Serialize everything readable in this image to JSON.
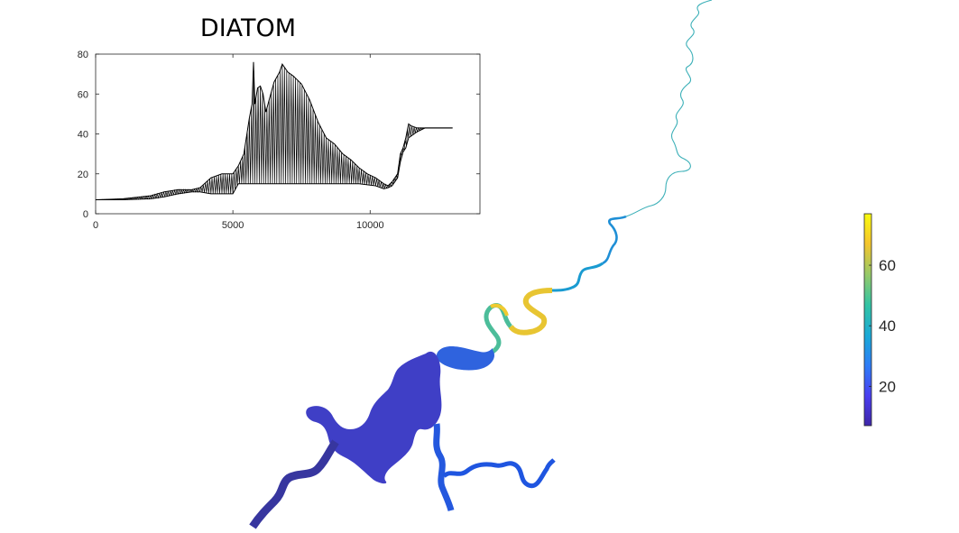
{
  "chart_data": [
    {
      "type": "line",
      "title": "DIATOM",
      "xlabel": "",
      "ylabel": "",
      "xlim": [
        0,
        14000
      ],
      "ylim": [
        0,
        80
      ],
      "xticks": [
        0,
        5000,
        10000
      ],
      "yticks": [
        0,
        20,
        40,
        60,
        80
      ],
      "xtick_labels": [
        "0",
        "5000",
        "10000"
      ],
      "ytick_labels": [
        "0",
        "20",
        "40",
        "60",
        "80"
      ],
      "grid": false,
      "line_color": "#000000",
      "envelope": {
        "x": [
          0,
          1000,
          2000,
          2500,
          3000,
          3500,
          3800,
          4200,
          4600,
          5000,
          5200,
          5400,
          5600,
          5700,
          5750,
          5800,
          5900,
          6000,
          6100,
          6200,
          6300,
          6500,
          6700,
          6800,
          7000,
          7200,
          7500,
          7800,
          8100,
          8400,
          8700,
          9000,
          9300,
          9600,
          9900,
          10200,
          10500,
          10650,
          10800,
          11000,
          11100,
          11200,
          11300,
          11400,
          11500,
          11700,
          12000,
          12500,
          13000
        ],
        "upper": [
          7,
          7.5,
          9,
          11,
          12,
          12,
          13,
          18,
          20,
          20,
          24,
          30,
          48,
          55,
          76,
          55,
          63,
          64,
          60,
          51,
          56,
          66,
          71,
          75,
          71,
          69,
          65,
          57,
          46,
          38,
          35,
          30,
          27,
          23,
          20,
          18,
          15,
          14,
          16,
          20,
          30,
          33,
          38,
          45,
          44,
          43,
          43,
          43,
          43
        ],
        "lower": [
          7,
          7,
          7.5,
          8.5,
          10,
          11,
          11,
          10,
          10,
          10,
          15,
          15,
          15,
          15,
          15,
          15,
          15,
          15,
          15,
          15,
          15,
          15,
          15,
          15,
          15,
          15,
          15,
          15,
          15,
          15,
          15,
          15,
          15,
          15,
          14.5,
          14,
          12.5,
          13,
          14,
          18,
          26,
          31,
          33,
          38,
          39,
          41,
          43,
          43,
          43
        ]
      }
    },
    {
      "type": "heatmap",
      "description_values_unit": "",
      "colorbar": {
        "min": 7,
        "max": 77,
        "ticks": [
          20,
          40,
          60
        ],
        "tick_labels": [
          "20",
          "40",
          "60"
        ],
        "colormap_stops": [
          "#3e26a8",
          "#4a3ef0",
          "#2e7bf7",
          "#1aa8d8",
          "#32c4a4",
          "#94c96a",
          "#f5c52c",
          "#f9fb0e"
        ]
      },
      "segment_values": [
        76,
        70,
        62,
        55,
        48,
        42,
        36,
        30,
        25,
        20,
        22,
        45,
        68,
        72,
        66,
        58,
        40,
        22,
        15,
        13,
        12,
        11,
        10,
        10,
        9,
        9
      ]
    }
  ]
}
